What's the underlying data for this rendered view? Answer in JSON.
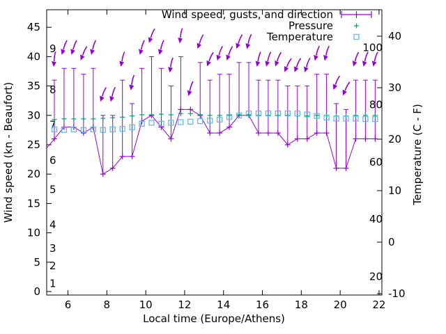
{
  "chart_data": {
    "type": "line",
    "title": "",
    "xlabel": "Local time (Europe/Athens)",
    "ylabel_left": "Wind speed (kn - Beaufort)",
    "ylabel_right": "Temperature (C - F)",
    "x_ticks": [
      6,
      8,
      10,
      12,
      14,
      16,
      18,
      20,
      22
    ],
    "y_left_ticks": [
      0,
      5,
      10,
      15,
      20,
      25,
      30,
      35,
      40,
      45
    ],
    "y_right_ticks": [
      -10,
      0,
      10,
      20,
      30,
      40
    ],
    "x_range_hours": [
      4.9,
      22.25
    ],
    "y_left_range_kn": [
      0,
      48
    ],
    "y_right_range_c": [
      -10.3,
      45
    ],
    "grid": false,
    "legend_position": "top-right-inside",
    "legend": [
      {
        "label": "Wind speed, gusts, and direction",
        "series": "wind",
        "color": "#9400d3",
        "marker": "errorbar-plus"
      },
      {
        "label": "Pressure",
        "series": "pressure",
        "color": "#009e73",
        "marker": "plus"
      },
      {
        "label": "Temperature",
        "series": "temperature",
        "color": "#63b8ea",
        "marker": "open-square"
      }
    ],
    "beaufort_inner_labels": [
      {
        "label": "1",
        "kn": 1
      },
      {
        "label": "2",
        "kn": 4
      },
      {
        "label": "3",
        "kn": 7
      },
      {
        "label": "4",
        "kn": 11
      },
      {
        "label": "5",
        "kn": 17
      },
      {
        "label": "6",
        "kn": 22
      },
      {
        "label": "7",
        "kn": 28
      },
      {
        "label": "8",
        "kn": 34
      },
      {
        "label": "9",
        "kn": 41
      }
    ],
    "fahrenheit_inner_labels": [
      20,
      40,
      60,
      80,
      100
    ],
    "x_hours": [
      5.3,
      5.8,
      6.3,
      6.8,
      7.3,
      7.8,
      8.3,
      8.8,
      9.3,
      9.8,
      10.3,
      10.8,
      11.3,
      11.8,
      12.3,
      12.8,
      13.3,
      13.8,
      14.3,
      14.8,
      15.3,
      15.8,
      16.3,
      16.8,
      17.3,
      17.8,
      18.3,
      18.8,
      19.3,
      19.8,
      20.3,
      20.8,
      21.3,
      21.8
    ],
    "lead_in_point": {
      "hour": 4.8,
      "wind_kn": 24
    },
    "series": [
      {
        "name": "wind_speed_kn",
        "values": [
          26,
          28,
          28,
          27,
          28,
          20,
          21,
          23,
          23,
          29,
          30,
          28,
          26,
          31,
          31,
          30,
          27,
          27,
          28,
          30,
          30,
          27,
          27,
          27,
          25,
          26,
          26,
          27,
          27,
          21,
          21,
          26,
          26,
          26
        ]
      },
      {
        "name": "wind_gust_kn",
        "values": [
          36,
          38,
          38,
          37,
          38,
          30,
          30,
          36,
          32,
          38,
          40,
          38,
          35,
          40,
          31,
          39,
          36,
          37,
          37,
          39,
          39,
          36,
          36,
          36,
          35,
          35,
          35,
          37,
          37,
          32,
          31,
          36,
          36,
          36
        ]
      },
      {
        "name": "wind_from_deg",
        "values": [
          5,
          18,
          18,
          22,
          15,
          20,
          15,
          12,
          10,
          15,
          20,
          15,
          10,
          8,
          15,
          20,
          22,
          18,
          20,
          20,
          15,
          12,
          15,
          20,
          25,
          22,
          18,
          15,
          15,
          22,
          25,
          18,
          15,
          15
        ]
      },
      {
        "name": "pressure_plotted_left_axis_units",
        "values": [
          29.3,
          29.4,
          29.4,
          29.4,
          29.4,
          29.5,
          29.6,
          29.7,
          29.9,
          30.1,
          30.1,
          30.2,
          30.1,
          30.3,
          30.3,
          30.1,
          30.0,
          30.0,
          30.0,
          30.1,
          30.1,
          30.0,
          30.0,
          30.0,
          30.0,
          29.9,
          29.9,
          30.0,
          30.0,
          29.9,
          29.9,
          30.0,
          30.0,
          30.0
        ]
      },
      {
        "name": "temperature_c",
        "values": [
          21.9,
          21.8,
          21.9,
          21.8,
          21.9,
          21.8,
          21.9,
          22.0,
          22.3,
          23.0,
          23.2,
          23.0,
          23.2,
          23.3,
          23.4,
          23.5,
          23.6,
          23.8,
          24.3,
          24.6,
          25.0,
          25.0,
          25.0,
          25.0,
          25.0,
          25.0,
          24.8,
          24.5,
          24.2,
          24.0,
          24.0,
          24.0,
          23.9,
          23.9
        ]
      }
    ]
  }
}
